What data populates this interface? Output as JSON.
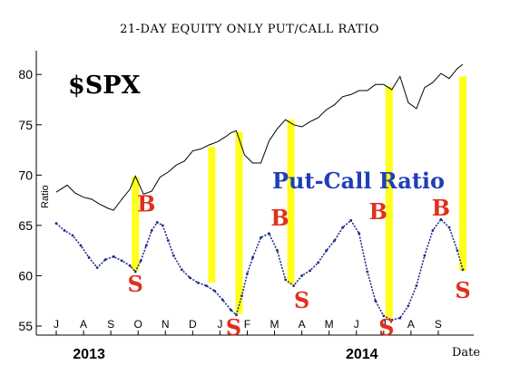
{
  "chart_data": {
    "type": "line",
    "title": "21-DAY EQUITY ONLY PUT/CALL RATIO",
    "index_label": "$SPX",
    "ratio_label": "Put-Call Ratio",
    "ylabel": "Ratio",
    "xlabel": "Date",
    "ylim": [
      55,
      82
    ],
    "yticks": [
      55,
      60,
      65,
      70,
      75,
      80
    ],
    "x_months": [
      "J",
      "A",
      "S",
      "O",
      "N",
      "D",
      "J",
      "F",
      "M",
      "A",
      "M",
      "J",
      "J",
      "A",
      "S"
    ],
    "x_years": [
      "2013",
      "2014"
    ],
    "x_range_months": [
      0,
      14.9
    ],
    "colors": {
      "spx_line": "#000000",
      "ratio_line": "#1f2a8a",
      "highlight": "#ffff1a",
      "signal": "#e0301e",
      "ratio_label": "#1f3fb8"
    },
    "series": [
      {
        "name": "$SPX",
        "x": [
          0.0,
          0.4,
          0.7,
          1.0,
          1.3,
          1.6,
          1.9,
          2.1,
          2.4,
          2.7,
          2.9,
          3.2,
          3.5,
          3.8,
          4.1,
          4.4,
          4.7,
          5.0,
          5.3,
          5.6,
          5.9,
          6.2,
          6.4,
          6.6,
          6.9,
          7.2,
          7.5,
          7.8,
          8.1,
          8.4,
          8.7,
          9.0,
          9.3,
          9.6,
          9.9,
          10.2,
          10.5,
          10.8,
          11.1,
          11.4,
          11.7,
          12.0,
          12.3,
          12.6,
          12.9,
          13.2,
          13.5,
          13.8,
          14.1,
          14.4,
          14.7,
          14.9
        ],
        "values": [
          68.3,
          69.0,
          68.2,
          67.8,
          67.6,
          67.1,
          66.7,
          66.5,
          67.6,
          68.6,
          69.9,
          68.1,
          68.4,
          69.8,
          70.3,
          71.0,
          71.4,
          72.4,
          72.6,
          73.0,
          73.3,
          73.8,
          74.2,
          74.4,
          72.0,
          71.2,
          71.2,
          73.4,
          74.6,
          75.5,
          75.0,
          74.8,
          75.3,
          75.7,
          76.5,
          77.0,
          77.8,
          78.0,
          78.4,
          78.4,
          79.0,
          79.0,
          78.5,
          79.8,
          77.2,
          76.6,
          78.7,
          79.2,
          80.1,
          79.6,
          80.6,
          81.0
        ]
      },
      {
        "name": "Put-Call Ratio",
        "x": [
          0.0,
          0.3,
          0.6,
          0.9,
          1.2,
          1.5,
          1.8,
          2.1,
          2.4,
          2.7,
          2.9,
          3.1,
          3.3,
          3.5,
          3.7,
          3.9,
          4.1,
          4.3,
          4.6,
          4.9,
          5.2,
          5.5,
          5.8,
          6.1,
          6.4,
          6.6,
          6.8,
          7.0,
          7.2,
          7.5,
          7.8,
          8.1,
          8.4,
          8.7,
          9.0,
          9.3,
          9.6,
          9.9,
          10.2,
          10.5,
          10.8,
          11.1,
          11.4,
          11.7,
          12.0,
          12.3,
          12.6,
          12.9,
          13.2,
          13.5,
          13.8,
          14.1,
          14.4,
          14.7,
          14.9
        ],
        "values": [
          65.2,
          64.5,
          64.0,
          63.0,
          61.8,
          60.8,
          61.6,
          61.9,
          61.5,
          61.0,
          60.4,
          61.5,
          63.0,
          64.5,
          65.3,
          65.0,
          63.5,
          62.0,
          60.6,
          59.8,
          59.3,
          59.0,
          58.5,
          57.6,
          56.6,
          56.1,
          58.0,
          60.2,
          61.8,
          63.8,
          64.2,
          62.5,
          59.6,
          59.0,
          60.0,
          60.5,
          61.3,
          62.5,
          63.5,
          64.8,
          65.5,
          64.2,
          60.4,
          57.5,
          56.0,
          55.6,
          55.8,
          57.0,
          59.0,
          62.0,
          64.5,
          65.6,
          64.8,
          62.5,
          60.6
        ]
      }
    ],
    "highlights": [
      {
        "x": 2.9,
        "top": 69.8,
        "bottom": 60.5
      },
      {
        "x": 5.7,
        "top": 72.8,
        "bottom": 59.3
      },
      {
        "x": 6.7,
        "top": 74.3,
        "bottom": 56.2
      },
      {
        "x": 8.6,
        "top": 75.5,
        "bottom": 59.2
      },
      {
        "x": 12.2,
        "top": 78.8,
        "bottom": 55.8
      },
      {
        "x": 14.9,
        "top": 79.8,
        "bottom": 60.5
      }
    ],
    "annotations": [
      {
        "text": "B",
        "x": 3.3,
        "y": 66.4
      },
      {
        "text": "S",
        "x": 2.9,
        "y": 58.4
      },
      {
        "text": "S",
        "x": 6.5,
        "y": 54.1
      },
      {
        "text": "B",
        "x": 8.2,
        "y": 65.0
      },
      {
        "text": "S",
        "x": 9.0,
        "y": 56.8
      },
      {
        "text": "B",
        "x": 11.8,
        "y": 65.6
      },
      {
        "text": "S",
        "x": 12.1,
        "y": 54.1
      },
      {
        "text": "B",
        "x": 14.1,
        "y": 66.0
      },
      {
        "text": "S",
        "x": 14.9,
        "y": 57.8
      }
    ]
  }
}
